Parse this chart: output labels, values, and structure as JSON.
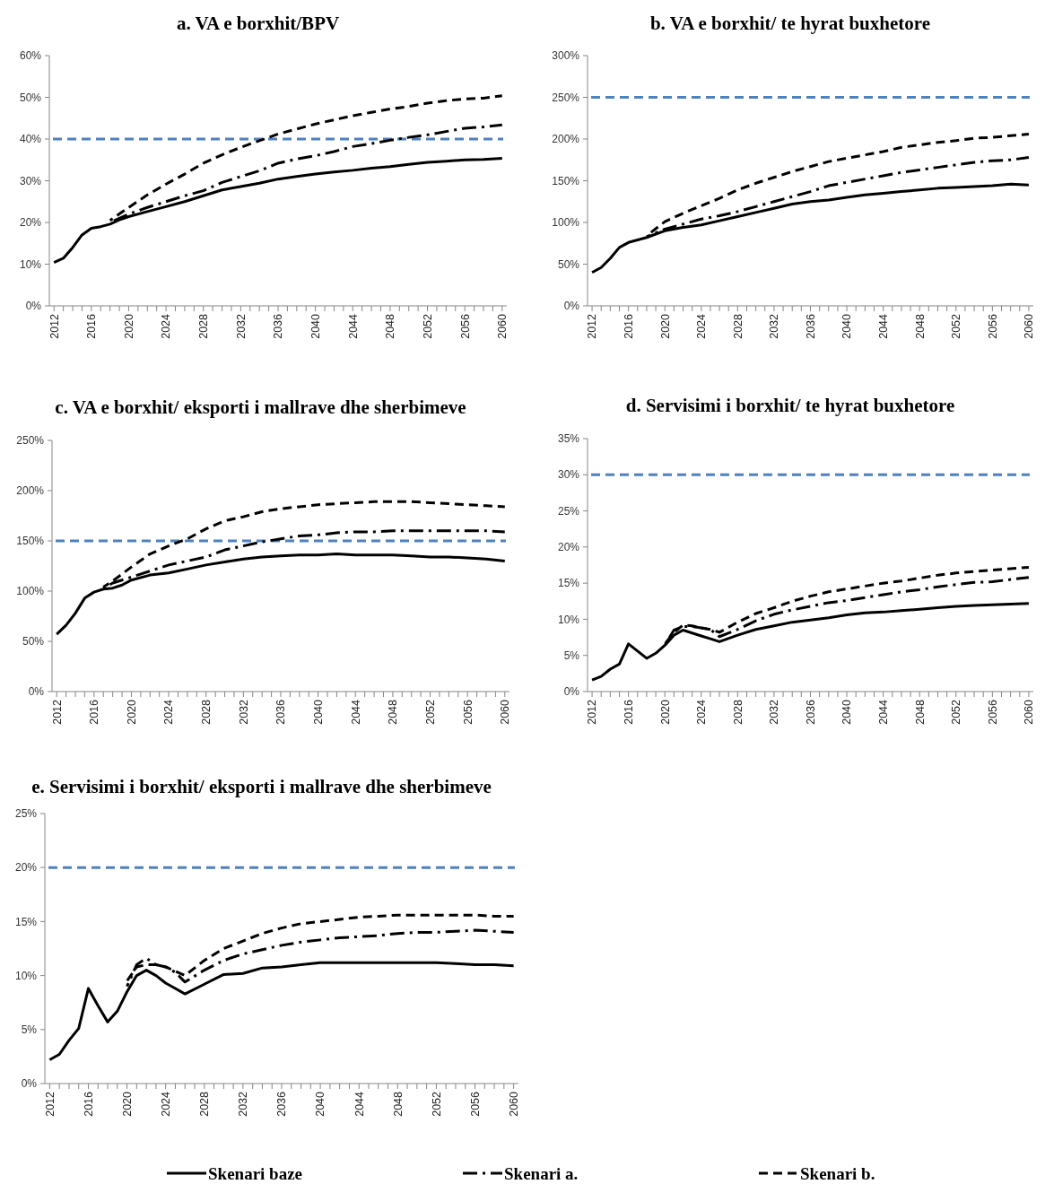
{
  "chart_data": [
    {
      "type": "line",
      "title": "a. VA e borxhit/BPV",
      "legend": "bottom",
      "xlim": [
        2011.5,
        2060.5
      ],
      "xticks": [
        2012,
        {
          "value": 2013,
          "label": null
        },
        {
          "value": 2014,
          "label": null
        },
        {
          "value": 2015,
          "label": null
        },
        2016,
        {
          "value": 2017,
          "label": null
        },
        {
          "value": 2018,
          "label": null
        },
        {
          "value": 2019,
          "label": null
        },
        2020,
        {
          "value": 2021,
          "label": null
        },
        {
          "value": 2022,
          "label": null
        },
        {
          "value": 2023,
          "label": null
        },
        2024,
        {
          "value": 2025,
          "label": null
        },
        {
          "value": 2026,
          "label": null
        },
        {
          "value": 2027,
          "label": null
        },
        2028,
        {
          "value": 2029,
          "label": null
        },
        {
          "value": 2030,
          "label": null
        },
        {
          "value": 2031,
          "label": null
        },
        2032,
        {
          "value": 2033,
          "label": null
        },
        {
          "value": 2034,
          "label": null
        },
        {
          "value": 2035,
          "label": null
        },
        2036,
        {
          "value": 2037,
          "label": null
        },
        {
          "value": 2038,
          "label": null
        },
        {
          "value": 2039,
          "label": null
        },
        2040,
        {
          "value": 2041,
          "label": null
        },
        {
          "value": 2042,
          "label": null
        },
        {
          "value": 2043,
          "label": null
        },
        2044,
        {
          "value": 2045,
          "label": null
        },
        {
          "value": 2046,
          "label": null
        },
        {
          "value": 2047,
          "label": null
        },
        2048,
        {
          "value": 2049,
          "label": null
        },
        {
          "value": 2050,
          "label": null
        },
        {
          "value": 2051,
          "label": null
        },
        2052,
        {
          "value": 2053,
          "label": null
        },
        {
          "value": 2054,
          "label": null
        },
        {
          "value": 2055,
          "label": null
        },
        2056,
        {
          "value": 2057,
          "label": null
        },
        {
          "value": 2058,
          "label": null
        },
        {
          "value": 2059,
          "label": null
        },
        2060
      ],
      "ylim": [
        0,
        60
      ],
      "yticks": [
        {
          "value": 0,
          "label": "0%"
        },
        {
          "value": 10,
          "label": "10%"
        },
        {
          "value": 20,
          "label": "20%"
        },
        {
          "value": 30,
          "label": "30%"
        },
        {
          "value": 40,
          "label": "40%"
        },
        {
          "value": 50,
          "label": "50%"
        },
        {
          "value": 60,
          "label": "60%"
        }
      ],
      "ref_lines": [
        {
          "axis": "y",
          "value": 40,
          "color": "#4f81bd",
          "line_style": "dashed"
        }
      ],
      "series": [
        {
          "name": "Skenari baze",
          "color": "#000000",
          "line_style": "solid",
          "x": [
            2012,
            2013,
            2014,
            2015,
            2016,
            2017,
            2018,
            2019,
            2020,
            2022,
            2024,
            2026,
            2028,
            2030,
            2032,
            2034,
            2036,
            2038,
            2040,
            2042,
            2044,
            2046,
            2048,
            2050,
            2052,
            2054,
            2056,
            2058,
            2060
          ],
          "values": [
            10.4,
            11.4,
            14,
            17,
            18.6,
            19,
            19.6,
            20.6,
            21.4,
            22.6,
            23.8,
            25,
            26.4,
            27.8,
            28.6,
            29.4,
            30.4,
            31,
            31.6,
            32.1,
            32.5,
            33,
            33.4,
            33.9,
            34.4,
            34.7,
            35,
            35.1,
            35.4
          ]
        },
        {
          "name": "Skenari a.",
          "color": "#000000",
          "line_style": "dashdot",
          "x": [
            2018,
            2020,
            2022,
            2024,
            2026,
            2028,
            2030,
            2032,
            2034,
            2036,
            2038,
            2040,
            2042,
            2044,
            2046,
            2048,
            2050,
            2052,
            2054,
            2056,
            2058,
            2060
          ],
          "values": [
            20,
            22,
            23.6,
            25,
            26.4,
            27.6,
            29.6,
            31,
            32.4,
            34.2,
            35.2,
            36,
            37,
            38.2,
            38.9,
            39.7,
            40.4,
            41,
            41.8,
            42.6,
            42.9,
            43.4
          ]
        },
        {
          "name": "Skenari b.",
          "color": "#000000",
          "line_style": "dashed",
          "x": [
            2018,
            2020,
            2022,
            2024,
            2026,
            2028,
            2030,
            2032,
            2034,
            2036,
            2038,
            2040,
            2042,
            2044,
            2046,
            2048,
            2050,
            2052,
            2054,
            2056,
            2058,
            2060
          ],
          "values": [
            20.5,
            23.6,
            26.6,
            29.2,
            31.6,
            34.2,
            36.2,
            38,
            39.6,
            41.2,
            42.4,
            43.6,
            44.6,
            45.6,
            46.4,
            47.2,
            47.8,
            48.6,
            49.2,
            49.6,
            49.8,
            50.4
          ]
        }
      ]
    },
    {
      "type": "line",
      "title": "b. VA e borxhit/ te hyrat buxhetore",
      "xlim": [
        2011.5,
        2060.5
      ],
      "xticks": [
        2012,
        {
          "value": 2013,
          "label": null
        },
        {
          "value": 2014,
          "label": null
        },
        {
          "value": 2015,
          "label": null
        },
        2016,
        {
          "value": 2017,
          "label": null
        },
        {
          "value": 2018,
          "label": null
        },
        {
          "value": 2019,
          "label": null
        },
        2020,
        {
          "value": 2021,
          "label": null
        },
        {
          "value": 2022,
          "label": null
        },
        {
          "value": 2023,
          "label": null
        },
        2024,
        {
          "value": 2025,
          "label": null
        },
        {
          "value": 2026,
          "label": null
        },
        {
          "value": 2027,
          "label": null
        },
        2028,
        {
          "value": 2029,
          "label": null
        },
        {
          "value": 2030,
          "label": null
        },
        {
          "value": 2031,
          "label": null
        },
        2032,
        {
          "value": 2033,
          "label": null
        },
        {
          "value": 2034,
          "label": null
        },
        {
          "value": 2035,
          "label": null
        },
        2036,
        {
          "value": 2037,
          "label": null
        },
        {
          "value": 2038,
          "label": null
        },
        {
          "value": 2039,
          "label": null
        },
        2040,
        {
          "value": 2041,
          "label": null
        },
        {
          "value": 2042,
          "label": null
        },
        {
          "value": 2043,
          "label": null
        },
        2044,
        {
          "value": 2045,
          "label": null
        },
        {
          "value": 2046,
          "label": null
        },
        {
          "value": 2047,
          "label": null
        },
        2048,
        {
          "value": 2049,
          "label": null
        },
        {
          "value": 2050,
          "label": null
        },
        {
          "value": 2051,
          "label": null
        },
        2052,
        {
          "value": 2053,
          "label": null
        },
        {
          "value": 2054,
          "label": null
        },
        {
          "value": 2055,
          "label": null
        },
        2056,
        {
          "value": 2057,
          "label": null
        },
        {
          "value": 2058,
          "label": null
        },
        {
          "value": 2059,
          "label": null
        },
        2060
      ],
      "ylim": [
        0,
        300
      ],
      "yticks": [
        {
          "value": 0,
          "label": "0%"
        },
        {
          "value": 50,
          "label": "50%"
        },
        {
          "value": 100,
          "label": "100%"
        },
        {
          "value": 150,
          "label": "150%"
        },
        {
          "value": 200,
          "label": "200%"
        },
        {
          "value": 250,
          "label": "250%"
        },
        {
          "value": 300,
          "label": "300%"
        }
      ],
      "ref_lines": [
        {
          "axis": "y",
          "value": 250,
          "color": "#4f81bd",
          "line_style": "dashed"
        }
      ],
      "series": [
        {
          "name": "Skenari baze",
          "color": "#000000",
          "line_style": "solid",
          "x": [
            2012,
            2013,
            2014,
            2015,
            2016,
            2017,
            2018,
            2019,
            2020,
            2022,
            2024,
            2026,
            2028,
            2030,
            2032,
            2034,
            2036,
            2038,
            2040,
            2042,
            2044,
            2046,
            2048,
            2050,
            2052,
            2054,
            2056,
            2058,
            2060
          ],
          "values": [
            40,
            46,
            57,
            70,
            76,
            79,
            82,
            86,
            90,
            94,
            97,
            102,
            107,
            112,
            117,
            122,
            125,
            127,
            130,
            133,
            135,
            137,
            139,
            141,
            142,
            143,
            144,
            146,
            145
          ]
        },
        {
          "name": "Skenari a.",
          "color": "#000000",
          "line_style": "dashdot",
          "x": [
            2018,
            2020,
            2022,
            2024,
            2026,
            2028,
            2030,
            2032,
            2034,
            2036,
            2038,
            2040,
            2042,
            2044,
            2046,
            2048,
            2050,
            2052,
            2054,
            2056,
            2058,
            2060
          ],
          "values": [
            83,
            92,
            98,
            104,
            108,
            113,
            119,
            125,
            131,
            137,
            144,
            148,
            152,
            156,
            160,
            163,
            166,
            169,
            172,
            174,
            175,
            178
          ]
        },
        {
          "name": "Skenari b.",
          "color": "#000000",
          "line_style": "dashed",
          "x": [
            2018,
            2020,
            2022,
            2024,
            2026,
            2028,
            2030,
            2032,
            2034,
            2036,
            2038,
            2040,
            2042,
            2044,
            2046,
            2048,
            2050,
            2052,
            2054,
            2056,
            2058,
            2060
          ],
          "values": [
            84,
            101,
            111,
            120,
            129,
            139,
            147,
            154,
            161,
            167,
            173,
            177,
            181,
            185,
            190,
            193,
            196,
            198,
            201,
            202,
            204,
            206
          ]
        }
      ]
    },
    {
      "type": "line",
      "title": "c. VA e borxhit/ eksporti i mallrave dhe sherbimeve",
      "xlim": [
        2011.5,
        2060.5
      ],
      "xticks": [
        2012,
        {
          "value": 2013,
          "label": null
        },
        {
          "value": 2014,
          "label": null
        },
        {
          "value": 2015,
          "label": null
        },
        2016,
        {
          "value": 2017,
          "label": null
        },
        {
          "value": 2018,
          "label": null
        },
        {
          "value": 2019,
          "label": null
        },
        2020,
        {
          "value": 2021,
          "label": null
        },
        {
          "value": 2022,
          "label": null
        },
        {
          "value": 2023,
          "label": null
        },
        2024,
        {
          "value": 2025,
          "label": null
        },
        {
          "value": 2026,
          "label": null
        },
        {
          "value": 2027,
          "label": null
        },
        2028,
        {
          "value": 2029,
          "label": null
        },
        {
          "value": 2030,
          "label": null
        },
        {
          "value": 2031,
          "label": null
        },
        2032,
        {
          "value": 2033,
          "label": null
        },
        {
          "value": 2034,
          "label": null
        },
        {
          "value": 2035,
          "label": null
        },
        2036,
        {
          "value": 2037,
          "label": null
        },
        {
          "value": 2038,
          "label": null
        },
        {
          "value": 2039,
          "label": null
        },
        2040,
        {
          "value": 2041,
          "label": null
        },
        {
          "value": 2042,
          "label": null
        },
        {
          "value": 2043,
          "label": null
        },
        2044,
        {
          "value": 2045,
          "label": null
        },
        {
          "value": 2046,
          "label": null
        },
        {
          "value": 2047,
          "label": null
        },
        2048,
        {
          "value": 2049,
          "label": null
        },
        {
          "value": 2050,
          "label": null
        },
        {
          "value": 2051,
          "label": null
        },
        2052,
        {
          "value": 2053,
          "label": null
        },
        {
          "value": 2054,
          "label": null
        },
        {
          "value": 2055,
          "label": null
        },
        2056,
        {
          "value": 2057,
          "label": null
        },
        {
          "value": 2058,
          "label": null
        },
        {
          "value": 2059,
          "label": null
        },
        2060
      ],
      "ylim": [
        0,
        250
      ],
      "yticks": [
        {
          "value": 0,
          "label": "0%"
        },
        {
          "value": 50,
          "label": "50%"
        },
        {
          "value": 100,
          "label": "100%"
        },
        {
          "value": 150,
          "label": "150%"
        },
        {
          "value": 200,
          "label": "200%"
        },
        {
          "value": 250,
          "label": "250%"
        }
      ],
      "ref_lines": [
        {
          "axis": "y",
          "value": 150,
          "color": "#4f81bd",
          "line_style": "dashed"
        }
      ],
      "series": [
        {
          "name": "Skenari baze",
          "color": "#000000",
          "line_style": "solid",
          "x": [
            2012,
            2013,
            2014,
            2015,
            2016,
            2017,
            2018,
            2019,
            2020,
            2022,
            2024,
            2026,
            2028,
            2030,
            2032,
            2034,
            2036,
            2038,
            2040,
            2042,
            2044,
            2046,
            2048,
            2050,
            2052,
            2054,
            2056,
            2058,
            2060
          ],
          "values": [
            57,
            66,
            78,
            93,
            99,
            102,
            103,
            106,
            111,
            116,
            118,
            122,
            126,
            129,
            132,
            134,
            135,
            136,
            136,
            137,
            136,
            136,
            136,
            135,
            134,
            134,
            133,
            132,
            130
          ]
        },
        {
          "name": "Skenari a.",
          "color": "#000000",
          "line_style": "dashdot",
          "x": [
            2017,
            2018,
            2020,
            2022,
            2024,
            2026,
            2028,
            2030,
            2032,
            2034,
            2036,
            2038,
            2040,
            2042,
            2044,
            2046,
            2048,
            2050,
            2052,
            2054,
            2056,
            2058,
            2060
          ],
          "values": [
            103,
            108,
            114,
            120,
            126,
            130,
            134,
            141,
            145,
            149,
            152,
            155,
            156,
            158,
            159,
            159,
            160,
            160,
            160,
            160,
            160,
            160,
            159
          ]
        },
        {
          "name": "Skenari b.",
          "color": "#000000",
          "line_style": "dashed",
          "x": [
            2017,
            2018,
            2020,
            2022,
            2024,
            2026,
            2028,
            2030,
            2032,
            2034,
            2036,
            2038,
            2040,
            2042,
            2044,
            2046,
            2048,
            2050,
            2052,
            2054,
            2056,
            2058,
            2060
          ],
          "values": [
            104,
            110,
            124,
            137,
            145,
            152,
            162,
            170,
            174,
            179,
            182,
            184,
            186,
            187,
            188,
            189,
            189,
            189,
            188,
            187,
            186,
            185,
            184
          ]
        }
      ]
    },
    {
      "type": "line",
      "title": "d. Servisimi i borxhit/ te hyrat buxhetore",
      "xlim": [
        2011.5,
        2060.5
      ],
      "xticks": [
        2012,
        {
          "value": 2013,
          "label": null
        },
        {
          "value": 2014,
          "label": null
        },
        {
          "value": 2015,
          "label": null
        },
        2016,
        {
          "value": 2017,
          "label": null
        },
        {
          "value": 2018,
          "label": null
        },
        {
          "value": 2019,
          "label": null
        },
        2020,
        {
          "value": 2021,
          "label": null
        },
        {
          "value": 2022,
          "label": null
        },
        {
          "value": 2023,
          "label": null
        },
        2024,
        {
          "value": 2025,
          "label": null
        },
        {
          "value": 2026,
          "label": null
        },
        {
          "value": 2027,
          "label": null
        },
        2028,
        {
          "value": 2029,
          "label": null
        },
        {
          "value": 2030,
          "label": null
        },
        {
          "value": 2031,
          "label": null
        },
        2032,
        {
          "value": 2033,
          "label": null
        },
        {
          "value": 2034,
          "label": null
        },
        {
          "value": 2035,
          "label": null
        },
        2036,
        {
          "value": 2037,
          "label": null
        },
        {
          "value": 2038,
          "label": null
        },
        {
          "value": 2039,
          "label": null
        },
        2040,
        {
          "value": 2041,
          "label": null
        },
        {
          "value": 2042,
          "label": null
        },
        {
          "value": 2043,
          "label": null
        },
        2044,
        {
          "value": 2045,
          "label": null
        },
        {
          "value": 2046,
          "label": null
        },
        {
          "value": 2047,
          "label": null
        },
        2048,
        {
          "value": 2049,
          "label": null
        },
        {
          "value": 2050,
          "label": null
        },
        {
          "value": 2051,
          "label": null
        },
        2052,
        {
          "value": 2053,
          "label": null
        },
        {
          "value": 2054,
          "label": null
        },
        {
          "value": 2055,
          "label": null
        },
        2056,
        {
          "value": 2057,
          "label": null
        },
        {
          "value": 2058,
          "label": null
        },
        {
          "value": 2059,
          "label": null
        },
        2060
      ],
      "ylim": [
        0,
        35
      ],
      "yticks": [
        {
          "value": 0,
          "label": "0%"
        },
        {
          "value": 5,
          "label": "5%"
        },
        {
          "value": 10,
          "label": "10%"
        },
        {
          "value": 15,
          "label": "15%"
        },
        {
          "value": 20,
          "label": "20%"
        },
        {
          "value": 25,
          "label": "25%"
        },
        {
          "value": 30,
          "label": "30%"
        },
        {
          "value": 35,
          "label": "35%"
        }
      ],
      "ref_lines": [
        {
          "axis": "y",
          "value": 30,
          "color": "#4f81bd",
          "line_style": "dashed"
        }
      ],
      "series": [
        {
          "name": "Skenari baze",
          "color": "#000000",
          "line_style": "solid",
          "x": [
            2012,
            2013,
            2014,
            2015,
            2016,
            2017,
            2018,
            2019,
            2020,
            2021,
            2022,
            2023,
            2024,
            2025,
            2026,
            2028,
            2030,
            2032,
            2034,
            2036,
            2038,
            2040,
            2042,
            2044,
            2046,
            2048,
            2050,
            2052,
            2054,
            2056,
            2058,
            2060
          ],
          "values": [
            1.6,
            2.1,
            3.1,
            3.8,
            6.6,
            5.6,
            4.6,
            5.3,
            6.4,
            7.8,
            8.5,
            8.1,
            7.7,
            7.3,
            6.9,
            7.8,
            8.6,
            9.1,
            9.6,
            9.9,
            10.2,
            10.6,
            10.9,
            11,
            11.2,
            11.4,
            11.6,
            11.8,
            11.9,
            12,
            12.1,
            12.2
          ]
        },
        {
          "name": "Skenari a.",
          "color": "#000000",
          "line_style": "dashdot",
          "x": [
            2020,
            2021,
            2022,
            2023,
            2024,
            2025,
            2026,
            2028,
            2030,
            2032,
            2034,
            2036,
            2038,
            2040,
            2042,
            2044,
            2046,
            2048,
            2050,
            2052,
            2054,
            2056,
            2058,
            2060
          ],
          "values": [
            6.5,
            8.5,
            9,
            9,
            8.8,
            8.6,
            7.6,
            8.6,
            9.8,
            10.7,
            11.3,
            11.8,
            12.3,
            12.6,
            13,
            13.4,
            13.8,
            14.1,
            14.5,
            14.8,
            15.1,
            15.2,
            15.5,
            15.8
          ]
        },
        {
          "name": "Skenari b.",
          "color": "#000000",
          "line_style": "dashed",
          "x": [
            2020,
            2021,
            2022,
            2023,
            2024,
            2025,
            2026,
            2028,
            2030,
            2032,
            2034,
            2036,
            2038,
            2040,
            2042,
            2044,
            2046,
            2048,
            2050,
            2052,
            2054,
            2056,
            2058,
            2060
          ],
          "values": [
            6.6,
            8.2,
            9.2,
            9.1,
            8.8,
            8.6,
            8.2,
            9.6,
            10.8,
            11.6,
            12.5,
            13.2,
            13.8,
            14.2,
            14.6,
            15,
            15.3,
            15.7,
            16.1,
            16.4,
            16.6,
            16.8,
            17,
            17.2
          ]
        }
      ]
    },
    {
      "type": "line",
      "title": "e. Servisimi i borxhit/ eksporti i mallrave dhe sherbimeve",
      "xlim": [
        2011.5,
        2060.5
      ],
      "xticks": [
        2012,
        {
          "value": 2013,
          "label": null
        },
        {
          "value": 2014,
          "label": null
        },
        {
          "value": 2015,
          "label": null
        },
        2016,
        {
          "value": 2017,
          "label": null
        },
        {
          "value": 2018,
          "label": null
        },
        {
          "value": 2019,
          "label": null
        },
        2020,
        {
          "value": 2021,
          "label": null
        },
        {
          "value": 2022,
          "label": null
        },
        {
          "value": 2023,
          "label": null
        },
        2024,
        {
          "value": 2025,
          "label": null
        },
        {
          "value": 2026,
          "label": null
        },
        {
          "value": 2027,
          "label": null
        },
        2028,
        {
          "value": 2029,
          "label": null
        },
        {
          "value": 2030,
          "label": null
        },
        {
          "value": 2031,
          "label": null
        },
        2032,
        {
          "value": 2033,
          "label": null
        },
        {
          "value": 2034,
          "label": null
        },
        {
          "value": 2035,
          "label": null
        },
        2036,
        {
          "value": 2037,
          "label": null
        },
        {
          "value": 2038,
          "label": null
        },
        {
          "value": 2039,
          "label": null
        },
        2040,
        {
          "value": 2041,
          "label": null
        },
        {
          "value": 2042,
          "label": null
        },
        {
          "value": 2043,
          "label": null
        },
        2044,
        {
          "value": 2045,
          "label": null
        },
        {
          "value": 2046,
          "label": null
        },
        {
          "value": 2047,
          "label": null
        },
        2048,
        {
          "value": 2049,
          "label": null
        },
        {
          "value": 2050,
          "label": null
        },
        {
          "value": 2051,
          "label": null
        },
        2052,
        {
          "value": 2053,
          "label": null
        },
        {
          "value": 2054,
          "label": null
        },
        {
          "value": 2055,
          "label": null
        },
        2056,
        {
          "value": 2057,
          "label": null
        },
        {
          "value": 2058,
          "label": null
        },
        {
          "value": 2059,
          "label": null
        },
        2060
      ],
      "ylim": [
        0,
        25
      ],
      "yticks": [
        {
          "value": 0,
          "label": "0%"
        },
        {
          "value": 5,
          "label": "5%"
        },
        {
          "value": 10,
          "label": "10%"
        },
        {
          "value": 15,
          "label": "15%"
        },
        {
          "value": 20,
          "label": "20%"
        },
        {
          "value": 25,
          "label": "25%"
        }
      ],
      "ref_lines": [
        {
          "axis": "y",
          "value": 20,
          "color": "#4f81bd",
          "line_style": "dashed"
        }
      ],
      "series": [
        {
          "name": "Skenari baze",
          "color": "#000000",
          "line_style": "solid",
          "x": [
            2012,
            2013,
            2014,
            2015,
            2016,
            2017,
            2018,
            2019,
            2020,
            2021,
            2022,
            2023,
            2024,
            2025,
            2026,
            2028,
            2030,
            2032,
            2034,
            2036,
            2038,
            2040,
            2042,
            2044,
            2046,
            2048,
            2050,
            2052,
            2054,
            2056,
            2058,
            2060
          ],
          "values": [
            2.2,
            2.7,
            4,
            5.1,
            8.8,
            7.2,
            5.7,
            6.7,
            8.5,
            10,
            10.5,
            10,
            9.3,
            8.8,
            8.3,
            9.2,
            10.1,
            10.2,
            10.7,
            10.8,
            11,
            11.2,
            11.2,
            11.2,
            11.2,
            11.2,
            11.2,
            11.2,
            11.1,
            11,
            11,
            10.9
          ]
        },
        {
          "name": "Skenari a.",
          "color": "#000000",
          "line_style": "dashdot",
          "x": [
            2020,
            2021,
            2022,
            2023,
            2024,
            2025,
            2026,
            2028,
            2030,
            2032,
            2034,
            2036,
            2038,
            2040,
            2042,
            2044,
            2046,
            2048,
            2050,
            2052,
            2054,
            2056,
            2058,
            2060
          ],
          "values": [
            9,
            11,
            11.6,
            11,
            10.8,
            10.3,
            9.4,
            10.5,
            11.4,
            12,
            12.4,
            12.8,
            13.1,
            13.3,
            13.5,
            13.6,
            13.7,
            13.9,
            14,
            14,
            14.1,
            14.2,
            14.1,
            14
          ]
        },
        {
          "name": "Skenari b.",
          "color": "#000000",
          "line_style": "dashed",
          "x": [
            2020,
            2021,
            2022,
            2023,
            2024,
            2025,
            2026,
            2028,
            2030,
            2032,
            2034,
            2036,
            2038,
            2040,
            2042,
            2044,
            2046,
            2048,
            2050,
            2052,
            2054,
            2056,
            2058,
            2060
          ],
          "values": [
            9.5,
            10.8,
            11,
            11,
            10.8,
            10.4,
            10,
            11.4,
            12.5,
            13.2,
            13.9,
            14.4,
            14.8,
            15,
            15.2,
            15.4,
            15.5,
            15.6,
            15.6,
            15.6,
            15.6,
            15.6,
            15.5,
            15.5
          ]
        }
      ]
    }
  ]
}
